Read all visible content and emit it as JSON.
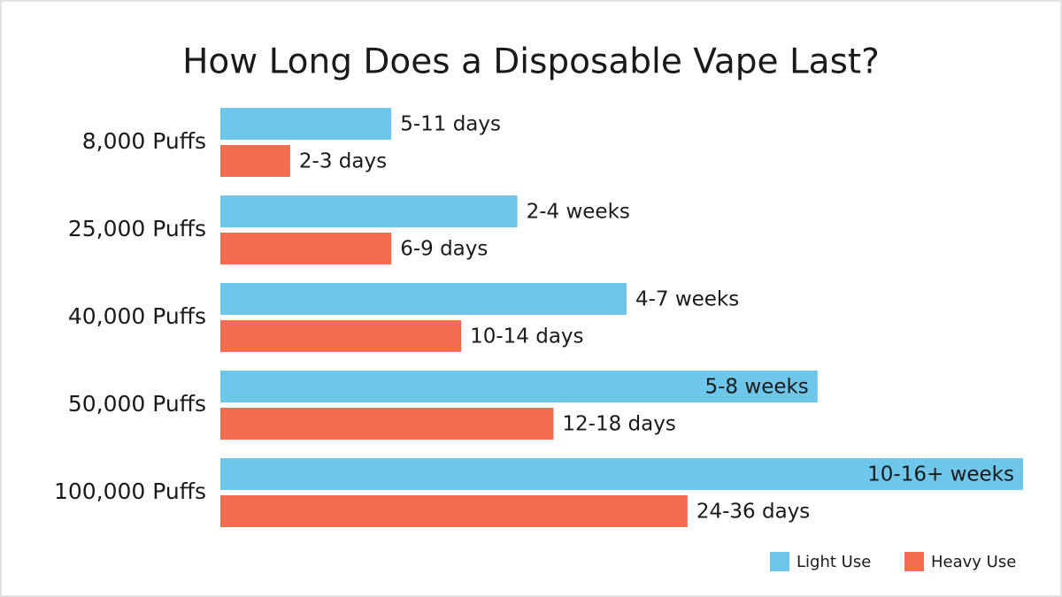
{
  "chart_data": {
    "type": "hbar",
    "title": "How Long Does a Disposable Vape Last?",
    "categories": [
      "8,000 Puffs",
      "25,000 Puffs",
      "40,000 Puffs",
      "50,000 Puffs",
      "100,000 Puffs"
    ],
    "xlim": [
      0,
      100
    ],
    "legend": "bottom-right",
    "series": [
      {
        "name": "Light Use",
        "color": "#6ec6ea",
        "values": [
          21.3,
          37,
          50.6,
          74.4,
          100
        ],
        "value_labels": [
          "5-11 days",
          "2-4 weeks",
          "4-7 weeks",
          "5-8 weeks",
          "10-16+ weeks"
        ]
      },
      {
        "name": "Heavy Use",
        "color": "#f26d50",
        "values": [
          8.7,
          21.3,
          30,
          41.5,
          58.2
        ],
        "value_labels": [
          "2-3 days",
          "6-9 days",
          "10-14 days",
          "12-18 days",
          "24-36 days"
        ]
      }
    ]
  }
}
